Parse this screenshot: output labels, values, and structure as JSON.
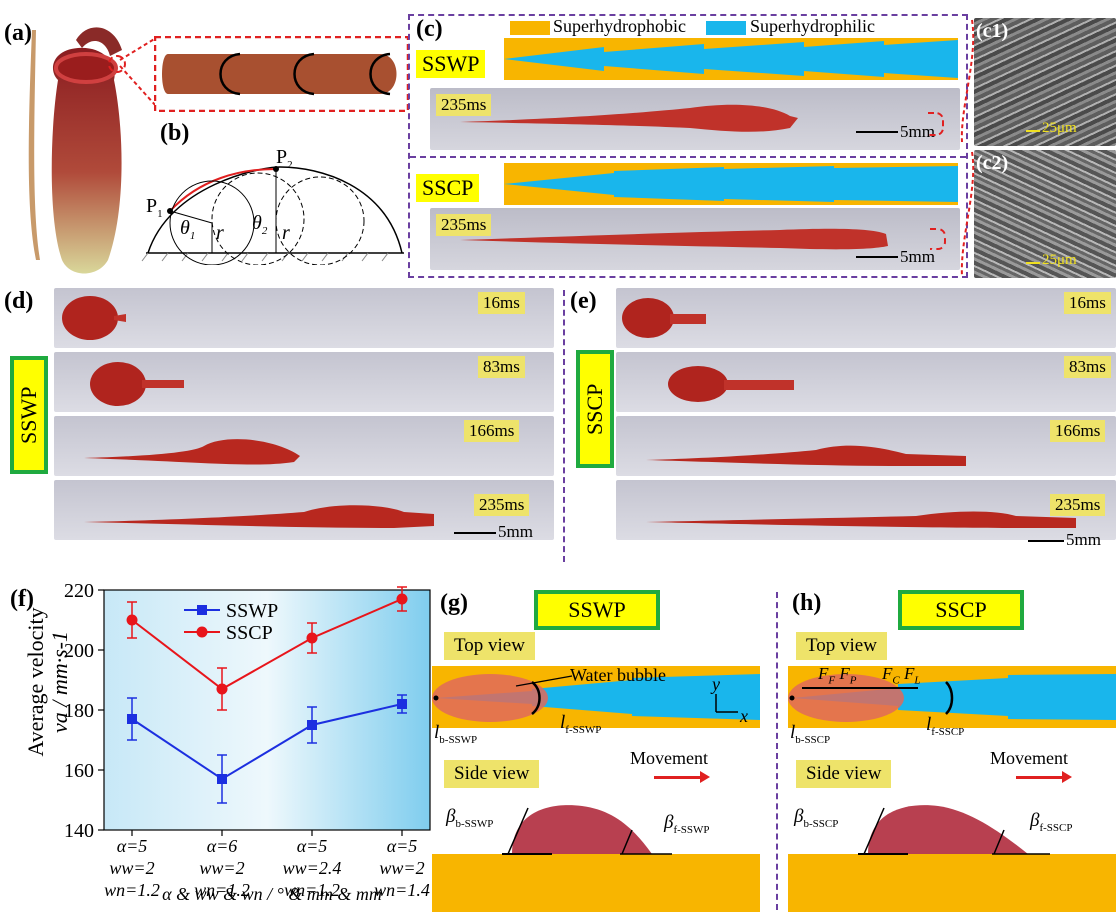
{
  "panels": {
    "a": "(a)",
    "b": "(b)",
    "c": "(c)",
    "c1": "(c1)",
    "c2": "(c2)",
    "d": "(d)",
    "e": "(e)",
    "f": "(f)",
    "g": "(g)",
    "h": "(h)"
  },
  "b_labels": {
    "p1": "P",
    "p1_sub": "1",
    "p2": "P",
    "p2_sub": "2",
    "theta1": "θ",
    "theta1_sub": "1",
    "theta2": "θ",
    "theta2_sub": "2",
    "r": "r"
  },
  "c_legend": {
    "hydrophobic": "Superhydrophobic",
    "hydrophilic": "Superhydrophilic"
  },
  "pattern_names": {
    "sswp": "SSWP",
    "sscp": "SSCP"
  },
  "times": {
    "t16": "16ms",
    "t83": "83ms",
    "t166": "166ms",
    "t235": "235ms"
  },
  "scales": {
    "five_mm": "5mm",
    "twentyfive_um": "25μm"
  },
  "chart_data": {
    "type": "line",
    "categories": [
      [
        "α=5",
        "ww=2",
        "wn=1.2"
      ],
      [
        "α=6",
        "ww=2",
        "wn=1.2"
      ],
      [
        "α=5",
        "ww=2.4",
        "wn=1.2"
      ],
      [
        "α=5",
        "ww=2",
        "wn=1.4"
      ]
    ],
    "ylabel_1": "Average velocity",
    "ylabel_2": "va / mm·s-1",
    "xlabel": "α & ww & wn / ° & mm & mm",
    "ylim": [
      140,
      220
    ],
    "yticks": [
      140,
      160,
      180,
      200,
      220
    ],
    "legend": "top-center",
    "series": [
      {
        "name": "SSWP",
        "color": "#1c2fe0",
        "values": [
          177,
          157,
          175,
          182
        ],
        "errors": [
          7,
          8,
          6,
          3
        ]
      },
      {
        "name": "SSCP",
        "color": "#e8151b",
        "values": [
          210,
          187,
          204,
          217
        ],
        "errors": [
          6,
          7,
          5,
          4
        ]
      }
    ]
  },
  "g_labels": {
    "top_view": "Top view",
    "side_view": "Side view",
    "water_bubble": "Water bubble",
    "movement": "Movement",
    "lb": "l",
    "lb_sub": "b-SSWP",
    "lf": "l",
    "lf_sub": "f-SSWP",
    "beta_b": "β",
    "beta_b_sub": "b-SSWP",
    "beta_f": "β",
    "beta_f_sub": "f-SSWP",
    "y": "y",
    "x": "x"
  },
  "h_labels": {
    "top_view": "Top view",
    "side_view": "Side view",
    "movement": "Movement",
    "lb": "l",
    "lb_sub": "b-SSCP",
    "lf": "l",
    "lf_sub": "f-SSCP",
    "beta_b": "β",
    "beta_b_sub": "b-SSCP",
    "beta_f": "β",
    "beta_f_sub": "f-SSCP",
    "ff": "F",
    "ff_sub": "F",
    "fp": "F",
    "fp_sub": "P",
    "fc": "F",
    "fc_sub": "C",
    "fl": "F",
    "fl_sub": "L"
  },
  "colors": {
    "orange": "#f8b500",
    "cyan": "#19b6ec",
    "purple": "#6a3fa0",
    "green": "#1faa3f",
    "yellowlabel": "#eee36a"
  }
}
